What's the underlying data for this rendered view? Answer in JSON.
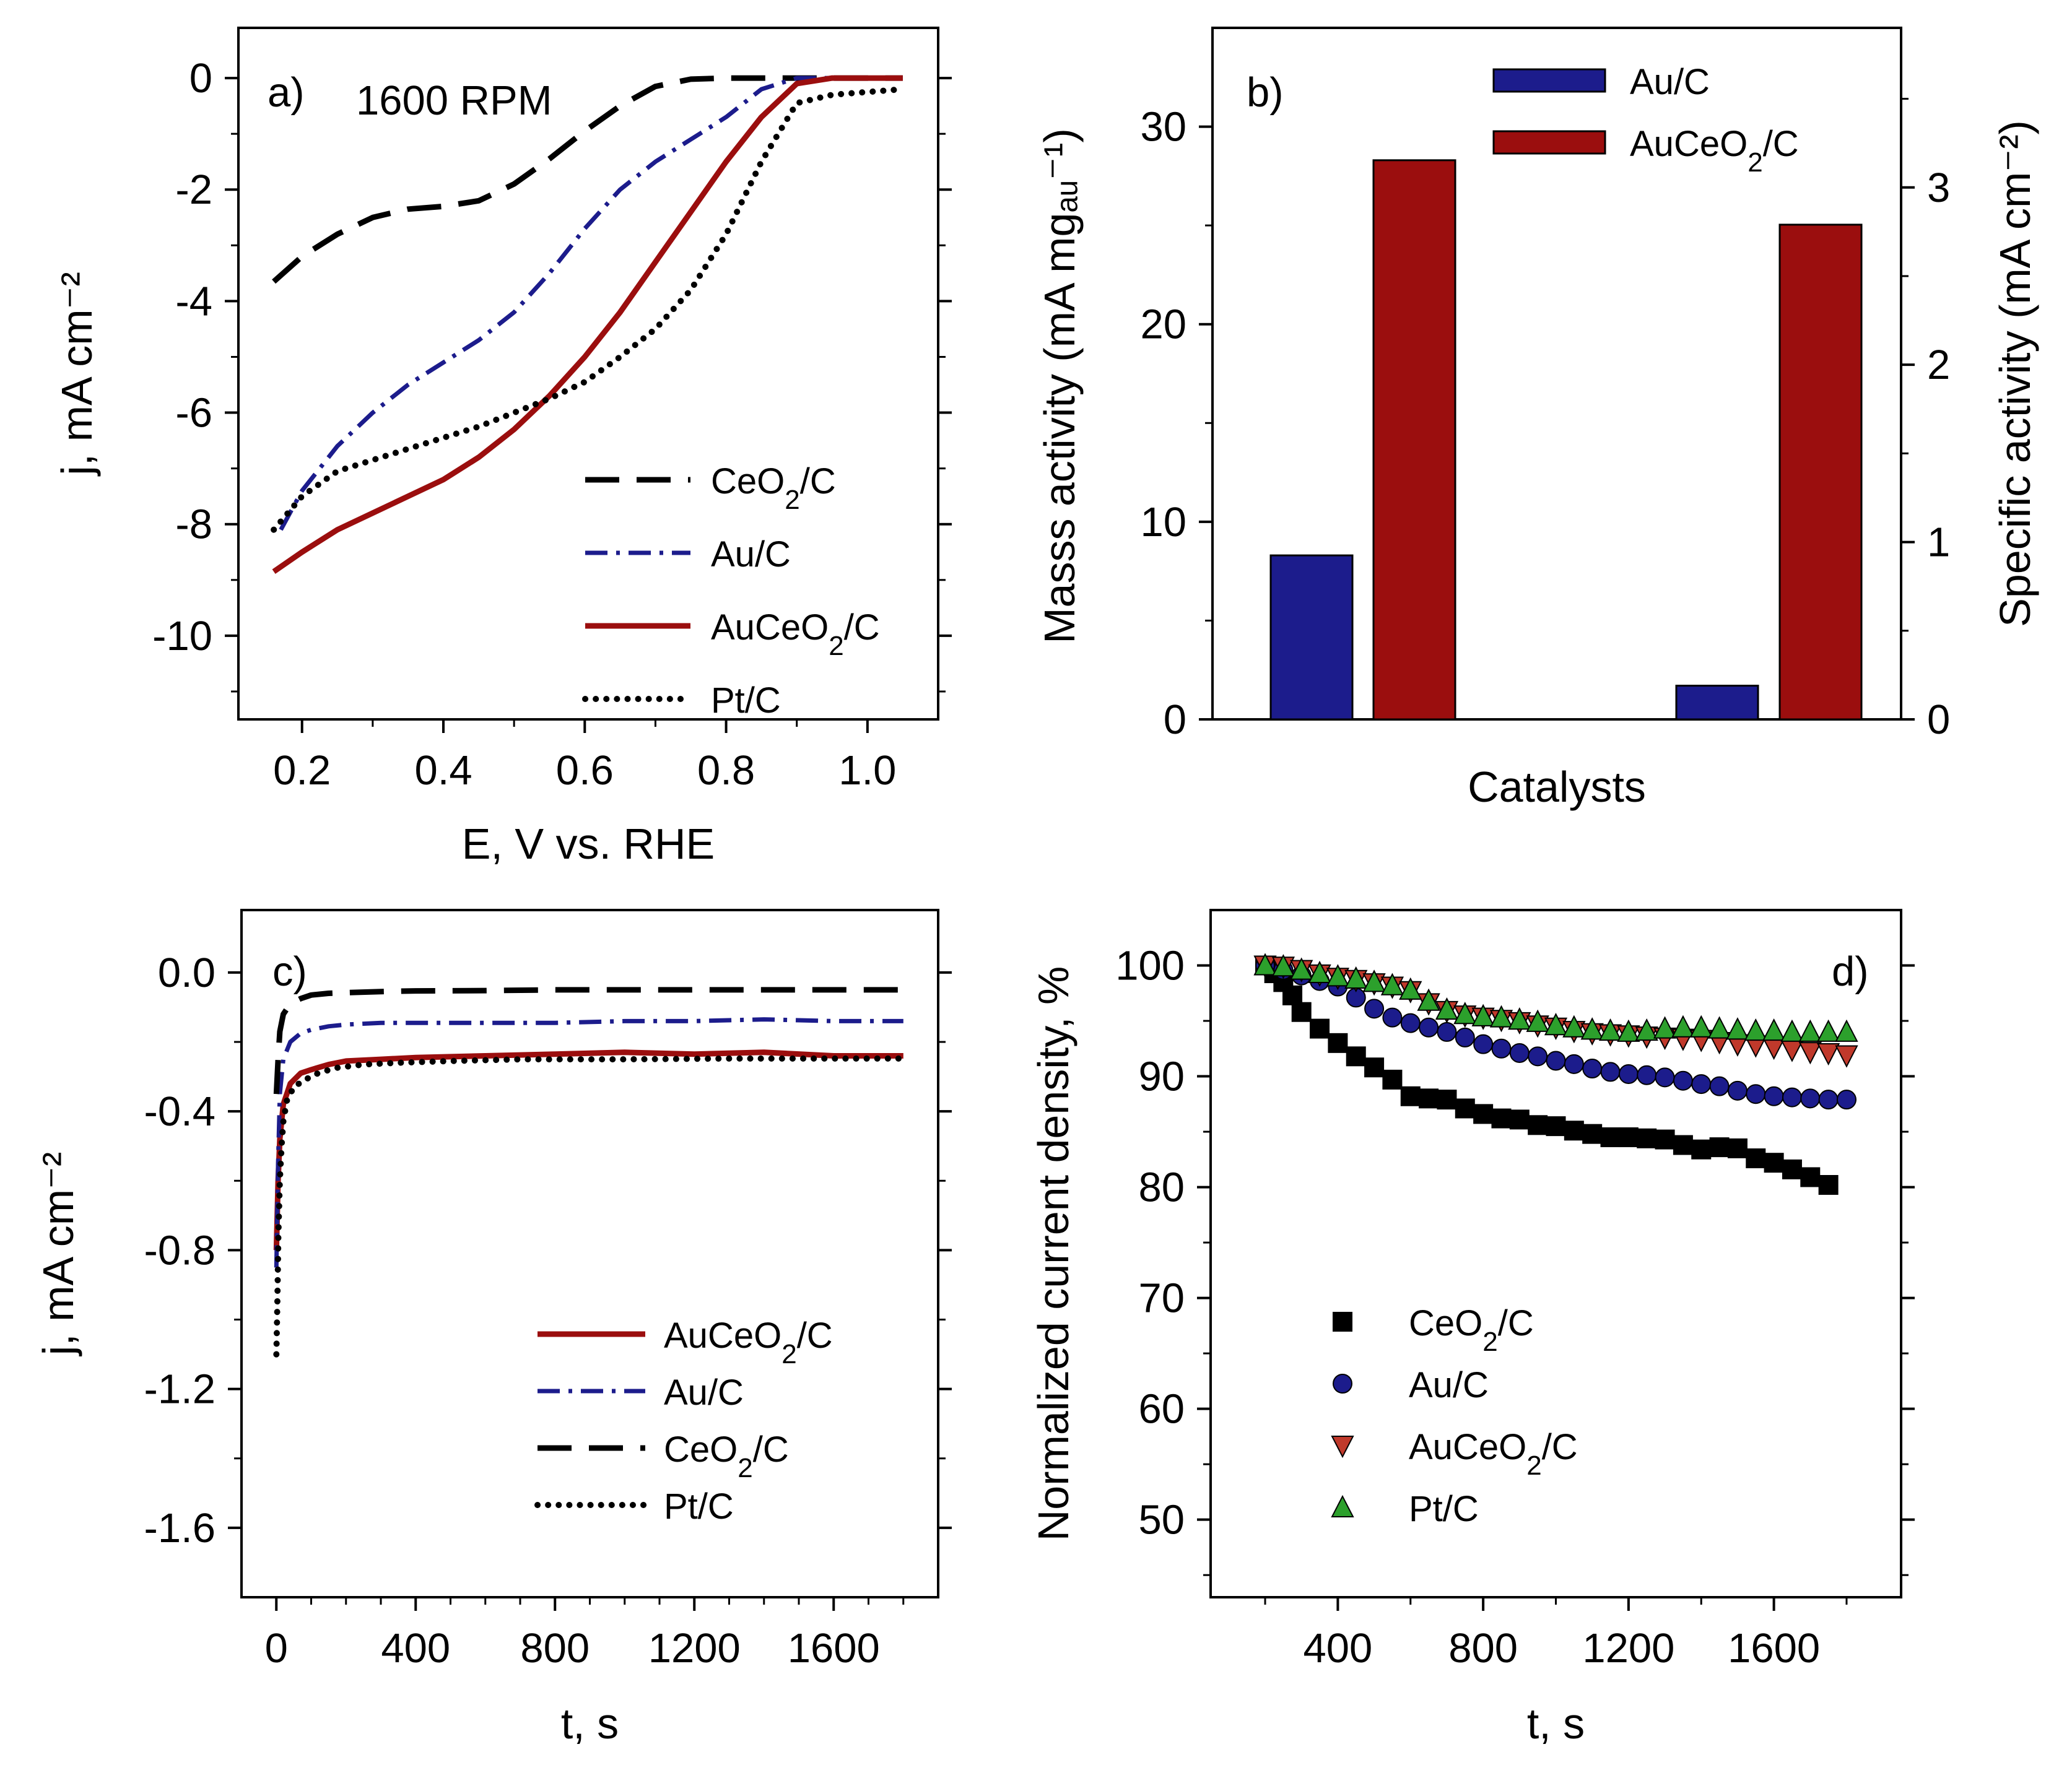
{
  "colors": {
    "ceo2": "#000000",
    "au": "#1c1c8c",
    "auceo2": "#9b0e0e",
    "pt": "#000000",
    "pt_marker": "#2ca02c"
  },
  "chart_data": [
    {
      "panel": "a)",
      "type": "line",
      "annotation": "1600 RPM",
      "xlabel": "E, V vs. RHE",
      "ylabel": "j, mA cm⁻²",
      "xlim": [
        0.11,
        1.1
      ],
      "ylim": [
        -11.5,
        0.9
      ],
      "xticks": [
        "0.2",
        "0.4",
        "0.6",
        "0.8",
        "1.0"
      ],
      "yticks": [
        "0",
        "-2",
        "-4",
        "-6",
        "-8",
        "-10"
      ],
      "legend": [
        "CeO2/C",
        "Au/C",
        "AuCeO2/C",
        "Pt/C"
      ],
      "series": [
        {
          "name": "CeO2/C",
          "style": "dash",
          "x": [
            0.16,
            0.2,
            0.25,
            0.3,
            0.35,
            0.4,
            0.45,
            0.5,
            0.55,
            0.6,
            0.65,
            0.7,
            0.75,
            0.8,
            0.85,
            0.9,
            0.95,
            1.0,
            1.05
          ],
          "y": [
            -3.65,
            -3.2,
            -2.8,
            -2.5,
            -2.35,
            -2.3,
            -2.2,
            -1.9,
            -1.45,
            -0.95,
            -0.5,
            -0.15,
            -0.02,
            0,
            0,
            0,
            0,
            0,
            0
          ]
        },
        {
          "name": "Au/C",
          "style": "dashdot",
          "x": [
            0.17,
            0.2,
            0.25,
            0.3,
            0.35,
            0.4,
            0.45,
            0.5,
            0.55,
            0.6,
            0.65,
            0.7,
            0.75,
            0.8,
            0.85,
            0.9,
            0.95,
            1.0,
            1.05
          ],
          "y": [
            -8.1,
            -7.4,
            -6.6,
            -6.0,
            -5.5,
            -5.1,
            -4.7,
            -4.2,
            -3.5,
            -2.7,
            -2.0,
            -1.5,
            -1.1,
            -0.7,
            -0.2,
            0,
            0,
            0,
            0
          ]
        },
        {
          "name": "AuCeO2/C",
          "style": "solid",
          "x": [
            0.16,
            0.2,
            0.25,
            0.3,
            0.35,
            0.4,
            0.45,
            0.5,
            0.55,
            0.6,
            0.65,
            0.7,
            0.75,
            0.8,
            0.85,
            0.9,
            0.95,
            1.0,
            1.05
          ],
          "y": [
            -8.85,
            -8.5,
            -8.1,
            -7.8,
            -7.5,
            -7.2,
            -6.8,
            -6.3,
            -5.7,
            -5.0,
            -4.2,
            -3.3,
            -2.4,
            -1.5,
            -0.7,
            -0.1,
            0,
            0,
            0
          ]
        },
        {
          "name": "Pt/C",
          "style": "dot",
          "x": [
            0.16,
            0.2,
            0.25,
            0.3,
            0.35,
            0.4,
            0.45,
            0.5,
            0.55,
            0.6,
            0.65,
            0.7,
            0.75,
            0.8,
            0.85,
            0.9,
            0.95,
            1.0,
            1.05
          ],
          "y": [
            -8.1,
            -7.5,
            -7.05,
            -6.85,
            -6.65,
            -6.45,
            -6.25,
            -6.0,
            -5.75,
            -5.45,
            -5.0,
            -4.5,
            -3.8,
            -2.8,
            -1.5,
            -0.45,
            -0.3,
            -0.25,
            -0.2
          ]
        }
      ]
    },
    {
      "panel": "b)",
      "type": "bar",
      "xlabel": "Catalysts",
      "ylabel": "Masss activity (mA mgₐᵤ⁻¹)",
      "ylabel_right": "Specific activity (mA cm⁻²)",
      "ylim": [
        0,
        35
      ],
      "ylim_right": [
        0,
        3.9
      ],
      "yticks": [
        "0",
        "10",
        "20",
        "30"
      ],
      "yticks_right": [
        "0",
        "1",
        "2",
        "3"
      ],
      "legend": [
        "Au/C",
        "AuCeO2/C"
      ],
      "groups": [
        {
          "axis": "left",
          "values": [
            {
              "name": "Au/C",
              "value": 8.3
            },
            {
              "name": "AuCeO2/C",
              "value": 28.3
            }
          ]
        },
        {
          "axis": "right",
          "values": [
            {
              "name": "Au/C",
              "value": 0.19
            },
            {
              "name": "AuCeO2/C",
              "value": 2.79
            }
          ]
        }
      ]
    },
    {
      "panel": "c)",
      "type": "line",
      "xlabel": "t, s",
      "ylabel": "j, mA cm⁻²",
      "xlim": [
        -100,
        1900
      ],
      "ylim": [
        -1.8,
        0.18
      ],
      "xticks": [
        "0",
        "400",
        "800",
        "1200",
        "1600"
      ],
      "yticks": [
        "0.0",
        "-0.4",
        "-0.8",
        "-1.2",
        "-1.6"
      ],
      "legend": [
        "AuCeO2/C",
        "Au/C",
        "CeO2/C",
        "Pt/C"
      ],
      "series": [
        {
          "name": "AuCeO2/C",
          "style": "solid",
          "x": [
            0,
            5,
            10,
            20,
            40,
            70,
            100,
            150,
            200,
            300,
            400,
            600,
            800,
            1000,
            1200,
            1400,
            1600,
            1800
          ],
          "y": [
            -0.8,
            -0.6,
            -0.48,
            -0.38,
            -0.32,
            -0.29,
            -0.28,
            -0.265,
            -0.255,
            -0.25,
            -0.245,
            -0.24,
            -0.235,
            -0.23,
            -0.235,
            -0.23,
            -0.24,
            -0.24
          ]
        },
        {
          "name": "Au/C",
          "style": "dashdot",
          "x": [
            0,
            5,
            10,
            20,
            40,
            70,
            100,
            150,
            200,
            300,
            400,
            600,
            800,
            1000,
            1200,
            1400,
            1600,
            1800
          ],
          "y": [
            -0.85,
            -0.55,
            -0.35,
            -0.25,
            -0.2,
            -0.175,
            -0.165,
            -0.155,
            -0.15,
            -0.145,
            -0.145,
            -0.145,
            -0.145,
            -0.14,
            -0.14,
            -0.135,
            -0.14,
            -0.14
          ]
        },
        {
          "name": "CeO2/C",
          "style": "dash",
          "x": [
            0,
            5,
            10,
            20,
            40,
            70,
            100,
            150,
            200,
            300,
            400,
            600,
            800,
            1000,
            1200,
            1400,
            1600,
            1800
          ],
          "y": [
            -0.35,
            -0.25,
            -0.17,
            -0.12,
            -0.09,
            -0.075,
            -0.065,
            -0.06,
            -0.058,
            -0.055,
            -0.053,
            -0.052,
            -0.05,
            -0.05,
            -0.05,
            -0.05,
            -0.05,
            -0.05
          ]
        },
        {
          "name": "Pt/C",
          "style": "dot",
          "x": [
            0,
            3,
            6,
            10,
            15,
            20,
            30,
            50,
            80,
            120,
            170,
            250,
            350,
            500,
            700,
            1000,
            1300,
            1600,
            1800
          ],
          "y": [
            -1.1,
            -0.95,
            -0.75,
            -0.6,
            -0.5,
            -0.43,
            -0.37,
            -0.33,
            -0.31,
            -0.29,
            -0.275,
            -0.265,
            -0.26,
            -0.255,
            -0.25,
            -0.25,
            -0.248,
            -0.248,
            -0.248
          ]
        }
      ]
    },
    {
      "panel": "d)",
      "type": "scatter",
      "xlabel": "t, s",
      "ylabel": "Normalized current density, %",
      "xlim": [
        50,
        1950
      ],
      "ylim": [
        43,
        105
      ],
      "xticks": [
        "400",
        "800",
        "1200",
        "1600"
      ],
      "yticks": [
        "100",
        "90",
        "80",
        "70",
        "60",
        "50"
      ],
      "legend": [
        "CeO2/C",
        "Au/C",
        "AuCeO2/C",
        "Pt/C"
      ],
      "series": [
        {
          "name": "CeO2/C",
          "marker": "square",
          "x": [
            200,
            225,
            250,
            275,
            300,
            350,
            400,
            450,
            500,
            550,
            600,
            650,
            700,
            750,
            800,
            850,
            900,
            950,
            1000,
            1050,
            1100,
            1150,
            1200,
            1250,
            1300,
            1350,
            1400,
            1450,
            1500,
            1550,
            1600,
            1650,
            1700,
            1750
          ],
          "y": [
            100,
            99.3,
            98.5,
            97.3,
            95.8,
            94.3,
            93.0,
            91.8,
            90.8,
            89.7,
            88.2,
            88.0,
            87.9,
            87.1,
            86.6,
            86.2,
            86.1,
            85.6,
            85.5,
            85.1,
            84.8,
            84.5,
            84.5,
            84.4,
            84.3,
            83.8,
            83.4,
            83.6,
            83.5,
            82.6,
            82.2,
            81.6,
            80.9,
            80.2
          ]
        },
        {
          "name": "Au/C",
          "marker": "circle",
          "x": [
            200,
            250,
            300,
            350,
            400,
            450,
            500,
            550,
            600,
            650,
            700,
            750,
            800,
            850,
            900,
            950,
            1000,
            1050,
            1100,
            1150,
            1200,
            1250,
            1300,
            1350,
            1400,
            1450,
            1500,
            1550,
            1600,
            1650,
            1700,
            1750,
            1800
          ],
          "y": [
            100,
            99.6,
            99.1,
            98.6,
            98.1,
            97.1,
            96.1,
            95.3,
            94.8,
            94.4,
            94.0,
            93.5,
            92.9,
            92.5,
            92.1,
            91.8,
            91.4,
            91.1,
            90.7,
            90.4,
            90.2,
            90.1,
            89.9,
            89.6,
            89.3,
            89.1,
            88.7,
            88.4,
            88.2,
            88.1,
            88.0,
            87.9,
            87.9
          ]
        },
        {
          "name": "AuCeO2/C",
          "marker": "triangle-down",
          "x": [
            200,
            250,
            300,
            350,
            400,
            450,
            500,
            550,
            600,
            650,
            700,
            750,
            800,
            850,
            900,
            950,
            1000,
            1050,
            1100,
            1150,
            1200,
            1250,
            1300,
            1350,
            1400,
            1450,
            1500,
            1550,
            1600,
            1650,
            1700,
            1750,
            1800
          ],
          "y": [
            100,
            99.9,
            99.6,
            99.2,
            98.9,
            98.7,
            98.4,
            98.1,
            97.7,
            96.6,
            95.9,
            95.5,
            95.3,
            95.1,
            94.9,
            94.6,
            94.4,
            94.1,
            93.9,
            93.8,
            93.7,
            93.6,
            93.5,
            93.4,
            93.3,
            93.1,
            92.9,
            92.8,
            92.6,
            92.4,
            92.2,
            92.1,
            91.9
          ]
        },
        {
          "name": "Pt/C",
          "marker": "triangle-up",
          "x": [
            200,
            250,
            300,
            350,
            400,
            450,
            500,
            550,
            600,
            650,
            700,
            750,
            800,
            850,
            900,
            950,
            1000,
            1050,
            1100,
            1150,
            1200,
            1250,
            1300,
            1350,
            1400,
            1450,
            1500,
            1550,
            1600,
            1650,
            1700,
            1750,
            1800
          ],
          "y": [
            100,
            99.9,
            99.6,
            99.3,
            99.0,
            98.8,
            98.5,
            98.2,
            97.8,
            96.8,
            96.0,
            95.6,
            95.4,
            95.3,
            95.1,
            94.9,
            94.6,
            94.4,
            94.2,
            94.1,
            94.0,
            94.1,
            94.3,
            94.4,
            94.4,
            94.3,
            94.2,
            94.1,
            94.1,
            94.0,
            94.0,
            94.0,
            94.0
          ]
        }
      ]
    }
  ]
}
